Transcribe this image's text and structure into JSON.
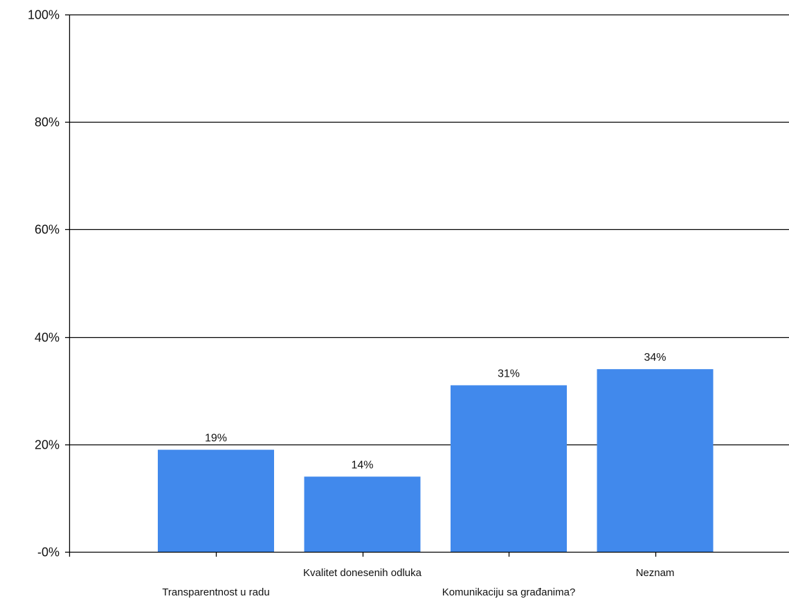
{
  "chart_data": {
    "type": "bar",
    "categories": [
      "Transparentnost u radu",
      "Kvalitet donesenih odluka",
      "Komunikaciju sa građanima?",
      "Neznam"
    ],
    "values": [
      19,
      14,
      31,
      34
    ],
    "data_labels": [
      "19%",
      "14%",
      "31%",
      "34%"
    ],
    "y_ticks": [
      0,
      20,
      40,
      60,
      80,
      100
    ],
    "y_tick_labels": [
      "-0%",
      "20%",
      "40%",
      "60%",
      "80%",
      "100%"
    ],
    "ylim": [
      0,
      100
    ],
    "grid": true,
    "title": "",
    "xlabel": "",
    "ylabel": ""
  },
  "colors": {
    "bar": "#4189ec",
    "grid": "#000000",
    "axis": "#000000"
  }
}
